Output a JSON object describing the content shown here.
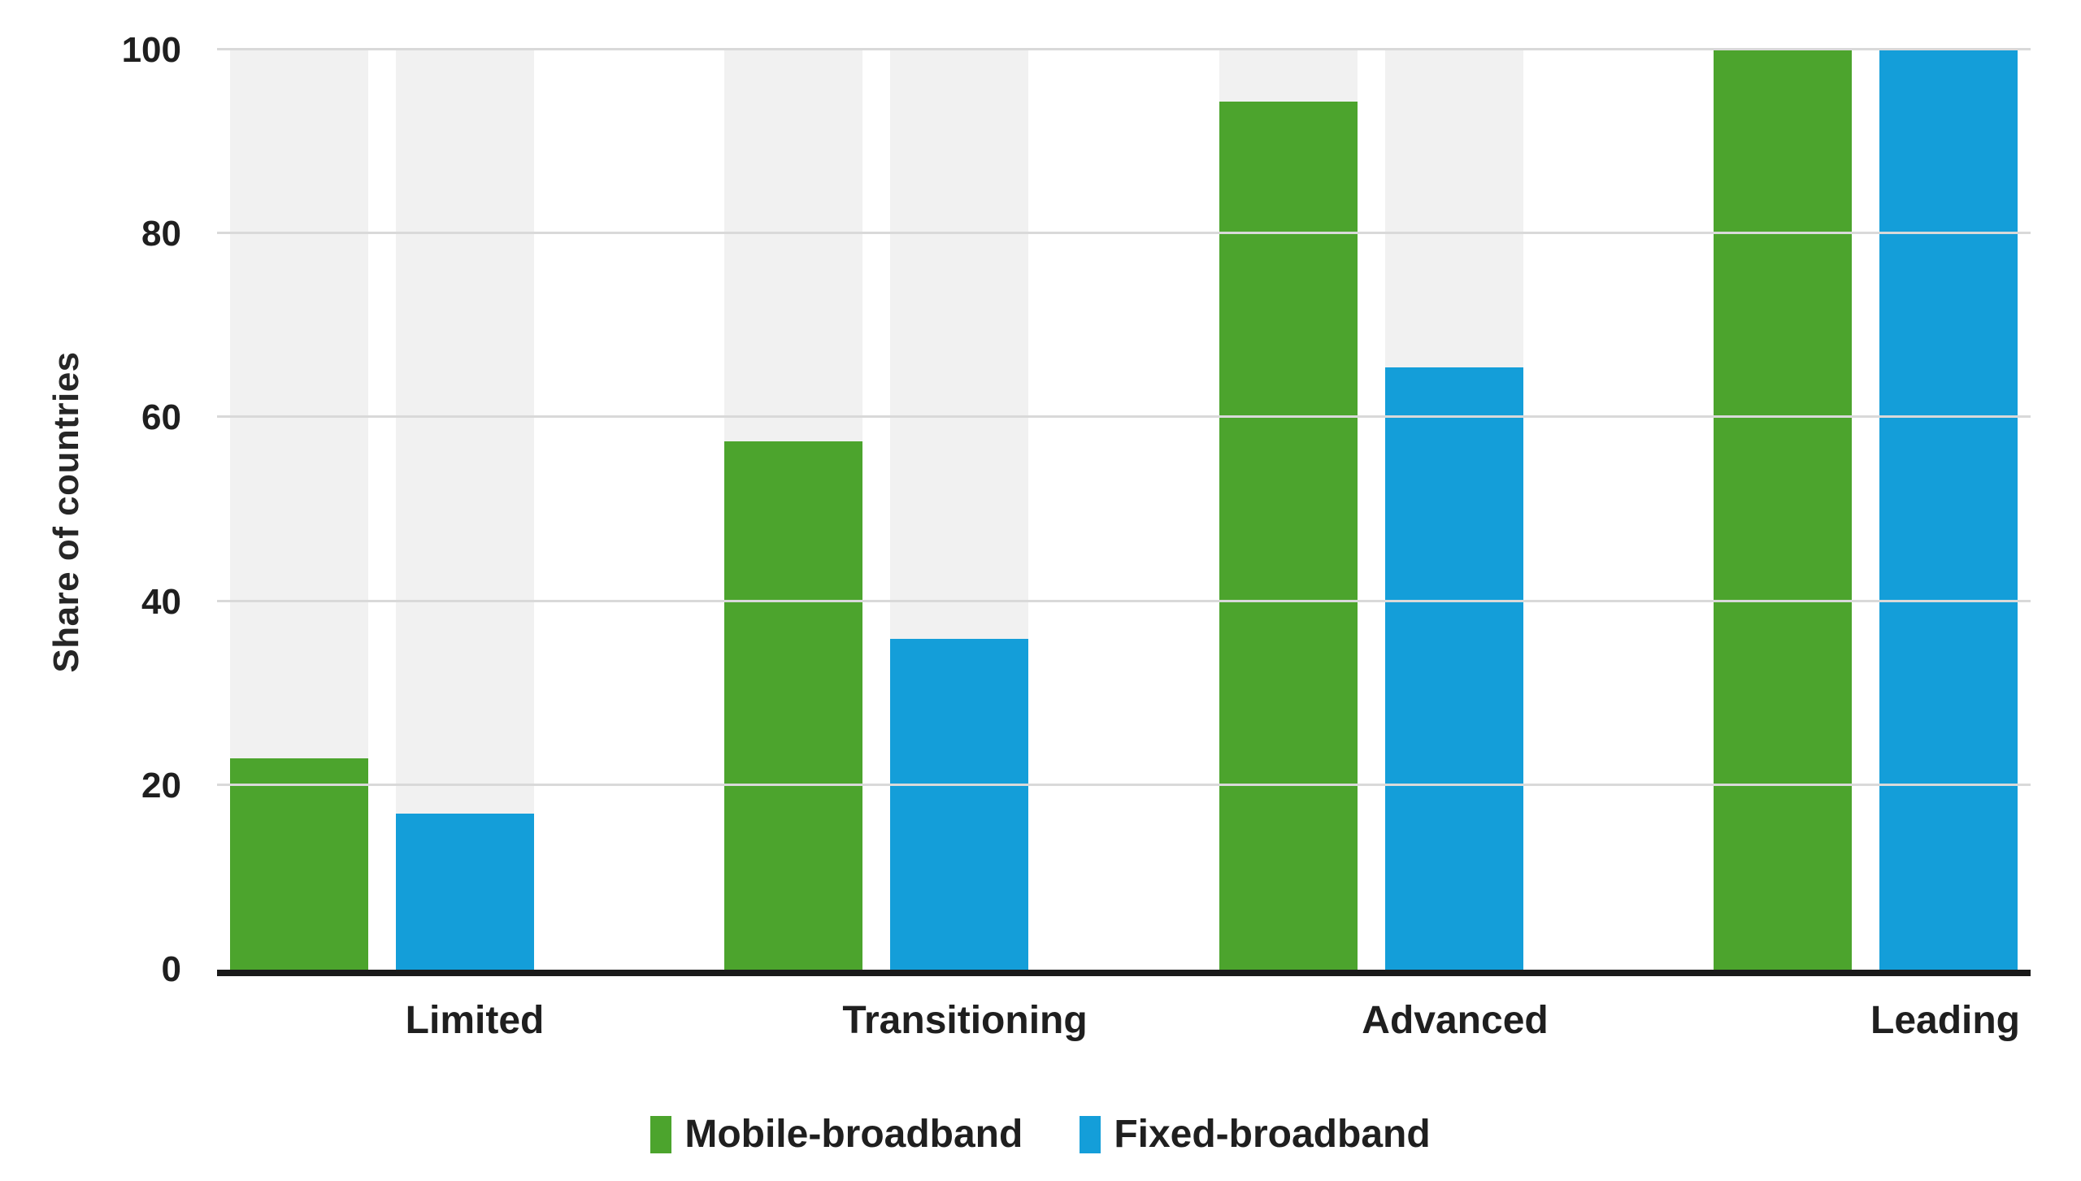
{
  "chart_data": {
    "type": "bar",
    "title": "",
    "categories": [
      "Limited",
      "Transitioning",
      "Advanced",
      "Leading"
    ],
    "series": [
      {
        "name": "Mobile-broadband",
        "color": "#4ca42d",
        "values": [
          23,
          57.5,
          94.4,
          100
        ]
      },
      {
        "name": "Fixed-broadband",
        "color": "#149ed9",
        "values": [
          17,
          36,
          65.5,
          100
        ]
      }
    ],
    "xlabel": "",
    "ylabel": "Share of countries",
    "ylim": [
      0,
      100
    ],
    "yticks": [
      0,
      20,
      40,
      60,
      80,
      100
    ],
    "grid": true,
    "gridline_color": "#d9d9d9",
    "axis_line_color": "#1a1a1a",
    "background_bar_color": "#f1f1f1",
    "background_bars_to": 100,
    "legend_position": "bottom",
    "legend": [
      {
        "label": "Mobile-broadband",
        "color": "#4ca42d"
      },
      {
        "label": "Fixed-broadband",
        "color": "#149ed9"
      }
    ]
  }
}
